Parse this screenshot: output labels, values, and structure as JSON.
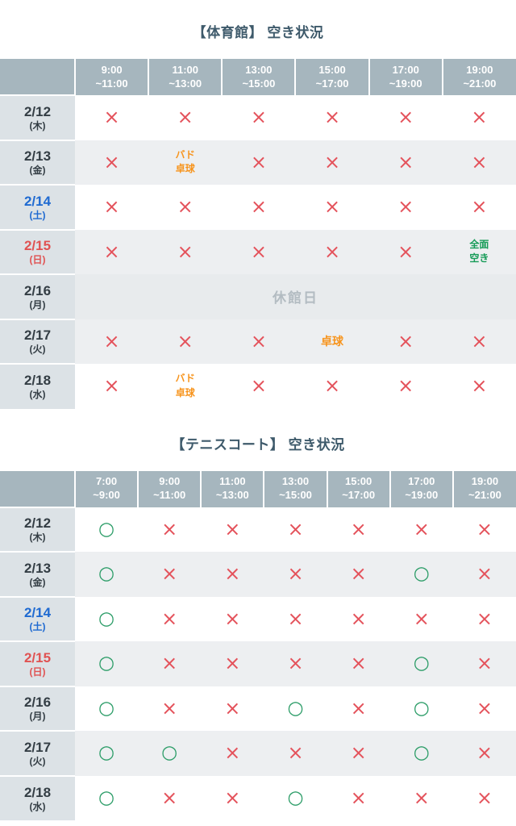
{
  "page": {
    "background": "#ffffff"
  },
  "colors": {
    "title": "#3e5a6b",
    "header_bg": "#a6b6be",
    "header_text": "#ffffff",
    "date_col_bg": "#dce2e6",
    "stripe_row_bg": "#edeff1",
    "closed_row_bg": "#e8ebed",
    "date_text": "#333d44",
    "saturday_text": "#1f6ad1",
    "sunday_text": "#e05252",
    "unavailable": "#e4535c",
    "available": "#2f9e6a",
    "event_text": "#f7941d",
    "open_all_text": "#169b57",
    "closed_text": "#b3bcc2"
  },
  "legend": {
    "available_symbol": "○",
    "unavailable_symbol": "×"
  },
  "tables": [
    {
      "title": "【体育館】 空き状況",
      "time_slots": [
        {
          "line1": "9:00",
          "line2": "~11:00"
        },
        {
          "line1": "11:00",
          "line2": "~13:00"
        },
        {
          "line1": "13:00",
          "line2": "~15:00"
        },
        {
          "line1": "15:00",
          "line2": "~17:00"
        },
        {
          "line1": "17:00",
          "line2": "~19:00"
        },
        {
          "line1": "19:00",
          "line2": "~21:00"
        }
      ],
      "rows": [
        {
          "date": "2/12",
          "day": "(木)",
          "day_type": "weekday",
          "cells": [
            "unavailable",
            "unavailable",
            "unavailable",
            "unavailable",
            "unavailable",
            "unavailable"
          ]
        },
        {
          "date": "2/13",
          "day": "(金)",
          "day_type": "weekday",
          "cells": [
            "unavailable",
            {
              "style": "event",
              "lines": [
                "バド",
                "卓球"
              ]
            },
            "unavailable",
            "unavailable",
            "unavailable",
            "unavailable"
          ]
        },
        {
          "date": "2/14",
          "day": "(土)",
          "day_type": "saturday",
          "cells": [
            "unavailable",
            "unavailable",
            "unavailable",
            "unavailable",
            "unavailable",
            "unavailable"
          ]
        },
        {
          "date": "2/15",
          "day": "(日)",
          "day_type": "sunday",
          "cells": [
            "unavailable",
            "unavailable",
            "unavailable",
            "unavailable",
            "unavailable",
            {
              "style": "open-all",
              "lines": [
                "全面",
                "空き"
              ]
            }
          ]
        },
        {
          "date": "2/16",
          "day": "(月)",
          "day_type": "weekday",
          "closed": true,
          "closed_label": "休館日"
        },
        {
          "date": "2/17",
          "day": "(火)",
          "day_type": "weekday",
          "cells": [
            "unavailable",
            "unavailable",
            "unavailable",
            {
              "style": "event",
              "lines": [
                "卓球"
              ]
            },
            "unavailable",
            "unavailable"
          ]
        },
        {
          "date": "2/18",
          "day": "(水)",
          "day_type": "weekday",
          "cells": [
            "unavailable",
            {
              "style": "event",
              "lines": [
                "バド",
                "卓球"
              ]
            },
            "unavailable",
            "unavailable",
            "unavailable",
            "unavailable"
          ]
        }
      ]
    },
    {
      "title": "【テニスコート】 空き状況",
      "time_slots": [
        {
          "line1": "7:00",
          "line2": "~9:00"
        },
        {
          "line1": "9:00",
          "line2": "~11:00"
        },
        {
          "line1": "11:00",
          "line2": "~13:00"
        },
        {
          "line1": "13:00",
          "line2": "~15:00"
        },
        {
          "line1": "15:00",
          "line2": "~17:00"
        },
        {
          "line1": "17:00",
          "line2": "~19:00"
        },
        {
          "line1": "19:00",
          "line2": "~21:00"
        }
      ],
      "rows": [
        {
          "date": "2/12",
          "day": "(木)",
          "day_type": "weekday",
          "cells": [
            "available",
            "unavailable",
            "unavailable",
            "unavailable",
            "unavailable",
            "unavailable",
            "unavailable"
          ]
        },
        {
          "date": "2/13",
          "day": "(金)",
          "day_type": "weekday",
          "cells": [
            "available",
            "unavailable",
            "unavailable",
            "unavailable",
            "unavailable",
            "available",
            "unavailable"
          ]
        },
        {
          "date": "2/14",
          "day": "(土)",
          "day_type": "saturday",
          "cells": [
            "available",
            "unavailable",
            "unavailable",
            "unavailable",
            "unavailable",
            "unavailable",
            "unavailable"
          ]
        },
        {
          "date": "2/15",
          "day": "(日)",
          "day_type": "sunday",
          "cells": [
            "available",
            "unavailable",
            "unavailable",
            "unavailable",
            "unavailable",
            "available",
            "unavailable"
          ]
        },
        {
          "date": "2/16",
          "day": "(月)",
          "day_type": "weekday",
          "cells": [
            "available",
            "unavailable",
            "unavailable",
            "available",
            "unavailable",
            "available",
            "unavailable"
          ]
        },
        {
          "date": "2/17",
          "day": "(火)",
          "day_type": "weekday",
          "cells": [
            "available",
            "available",
            "unavailable",
            "unavailable",
            "unavailable",
            "available",
            "unavailable"
          ]
        },
        {
          "date": "2/18",
          "day": "(水)",
          "day_type": "weekday",
          "cells": [
            "available",
            "unavailable",
            "unavailable",
            "available",
            "unavailable",
            "unavailable",
            "unavailable"
          ]
        }
      ]
    }
  ]
}
